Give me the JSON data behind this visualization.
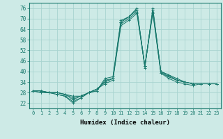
{
  "title": "",
  "xlabel": "Humidex (Indice chaleur)",
  "xlim": [
    -0.5,
    23.5
  ],
  "ylim": [
    19,
    79
  ],
  "yticks": [
    22,
    28,
    34,
    40,
    46,
    52,
    58,
    64,
    70,
    76
  ],
  "xticks": [
    0,
    1,
    2,
    3,
    4,
    5,
    6,
    7,
    8,
    9,
    10,
    11,
    12,
    13,
    14,
    15,
    16,
    17,
    18,
    19,
    20,
    21,
    22,
    23
  ],
  "bg_color": "#cdeae6",
  "grid_color": "#a8d4d0",
  "line_color": "#1a7a6e",
  "series": [
    [
      29,
      29,
      28,
      28,
      27,
      26,
      26,
      28,
      29,
      36,
      37,
      69,
      71,
      76,
      42,
      76,
      40,
      38,
      36,
      34,
      33,
      33,
      33,
      33
    ],
    [
      29,
      29,
      28,
      28,
      27,
      25,
      26,
      28,
      29,
      35,
      36,
      68,
      71,
      75,
      43,
      75,
      40,
      38,
      35,
      34,
      33,
      33,
      33,
      33
    ],
    [
      29,
      29,
      28,
      28,
      27,
      24,
      26,
      28,
      30,
      34,
      36,
      68,
      71,
      75,
      43,
      75,
      40,
      37,
      35,
      34,
      33,
      33,
      33,
      33
    ],
    [
      29,
      28,
      28,
      27,
      26,
      23,
      25,
      28,
      30,
      34,
      36,
      67,
      70,
      74,
      43,
      74,
      39,
      37,
      35,
      34,
      33,
      33,
      33,
      33
    ],
    [
      29,
      28,
      28,
      27,
      26,
      22,
      25,
      28,
      30,
      33,
      35,
      66,
      69,
      73,
      43,
      73,
      39,
      36,
      34,
      33,
      32,
      33,
      33,
      33
    ]
  ]
}
